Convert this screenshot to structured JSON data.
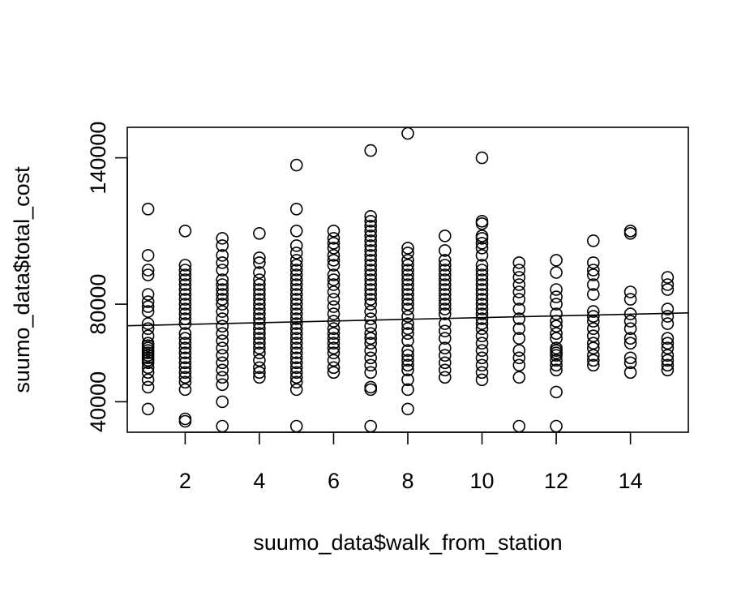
{
  "chart_data": {
    "type": "scatter",
    "title": "",
    "xlabel": "suumo_data$walk_from_station",
    "ylabel": "suumo_data$total_cost",
    "xlim": [
      0.44,
      15.56
    ],
    "ylim": [
      27500,
      152500
    ],
    "xticks": [
      2,
      4,
      6,
      8,
      10,
      12,
      14
    ],
    "yticks": [
      40000,
      80000,
      140000
    ],
    "grid": false,
    "legend": "none",
    "marker": "open-circle",
    "regression_line": {
      "intercept": 71000,
      "slope": 350
    },
    "points": [
      {
        "x": 1,
        "y": 37000
      },
      {
        "x": 1,
        "y": 46000
      },
      {
        "x": 1,
        "y": 49000
      },
      {
        "x": 1,
        "y": 52000
      },
      {
        "x": 1,
        "y": 54000
      },
      {
        "x": 1,
        "y": 56000
      },
      {
        "x": 1,
        "y": 57000
      },
      {
        "x": 1,
        "y": 58000
      },
      {
        "x": 1,
        "y": 59000
      },
      {
        "x": 1,
        "y": 60000
      },
      {
        "x": 1,
        "y": 61000
      },
      {
        "x": 1,
        "y": 62000
      },
      {
        "x": 1,
        "y": 63000
      },
      {
        "x": 1,
        "y": 64000
      },
      {
        "x": 1,
        "y": 67000
      },
      {
        "x": 1,
        "y": 70000
      },
      {
        "x": 1,
        "y": 72000
      },
      {
        "x": 1,
        "y": 77000
      },
      {
        "x": 1,
        "y": 79000
      },
      {
        "x": 1,
        "y": 81000
      },
      {
        "x": 1,
        "y": 84000
      },
      {
        "x": 1,
        "y": 92000
      },
      {
        "x": 1,
        "y": 94000
      },
      {
        "x": 1,
        "y": 100000
      },
      {
        "x": 1,
        "y": 119000
      },
      {
        "x": 2,
        "y": 32000
      },
      {
        "x": 2,
        "y": 33000
      },
      {
        "x": 2,
        "y": 45000
      },
      {
        "x": 2,
        "y": 48000
      },
      {
        "x": 2,
        "y": 50000
      },
      {
        "x": 2,
        "y": 52000
      },
      {
        "x": 2,
        "y": 54000
      },
      {
        "x": 2,
        "y": 56000
      },
      {
        "x": 2,
        "y": 58000
      },
      {
        "x": 2,
        "y": 60000
      },
      {
        "x": 2,
        "y": 62000
      },
      {
        "x": 2,
        "y": 64000
      },
      {
        "x": 2,
        "y": 66000
      },
      {
        "x": 2,
        "y": 68000
      },
      {
        "x": 2,
        "y": 72000
      },
      {
        "x": 2,
        "y": 74000
      },
      {
        "x": 2,
        "y": 76000
      },
      {
        "x": 2,
        "y": 78000
      },
      {
        "x": 2,
        "y": 80000
      },
      {
        "x": 2,
        "y": 82000
      },
      {
        "x": 2,
        "y": 84000
      },
      {
        "x": 2,
        "y": 86000
      },
      {
        "x": 2,
        "y": 88000
      },
      {
        "x": 2,
        "y": 90000
      },
      {
        "x": 2,
        "y": 92000
      },
      {
        "x": 2,
        "y": 94000
      },
      {
        "x": 2,
        "y": 96000
      },
      {
        "x": 2,
        "y": 110000
      },
      {
        "x": 3,
        "y": 30000
      },
      {
        "x": 3,
        "y": 40000
      },
      {
        "x": 3,
        "y": 47000
      },
      {
        "x": 3,
        "y": 50000
      },
      {
        "x": 3,
        "y": 53000
      },
      {
        "x": 3,
        "y": 56000
      },
      {
        "x": 3,
        "y": 59000
      },
      {
        "x": 3,
        "y": 62000
      },
      {
        "x": 3,
        "y": 65000
      },
      {
        "x": 3,
        "y": 68000
      },
      {
        "x": 3,
        "y": 71000
      },
      {
        "x": 3,
        "y": 74000
      },
      {
        "x": 3,
        "y": 77000
      },
      {
        "x": 3,
        "y": 80000
      },
      {
        "x": 3,
        "y": 82000
      },
      {
        "x": 3,
        "y": 84000
      },
      {
        "x": 3,
        "y": 86000
      },
      {
        "x": 3,
        "y": 88000
      },
      {
        "x": 3,
        "y": 90000
      },
      {
        "x": 3,
        "y": 94000
      },
      {
        "x": 3,
        "y": 97000
      },
      {
        "x": 3,
        "y": 100000
      },
      {
        "x": 3,
        "y": 104000
      },
      {
        "x": 3,
        "y": 107000
      },
      {
        "x": 4,
        "y": 50000
      },
      {
        "x": 4,
        "y": 52000
      },
      {
        "x": 4,
        "y": 54000
      },
      {
        "x": 4,
        "y": 57000
      },
      {
        "x": 4,
        "y": 60000
      },
      {
        "x": 4,
        "y": 62000
      },
      {
        "x": 4,
        "y": 64000
      },
      {
        "x": 4,
        "y": 66000
      },
      {
        "x": 4,
        "y": 68000
      },
      {
        "x": 4,
        "y": 70000
      },
      {
        "x": 4,
        "y": 72000
      },
      {
        "x": 4,
        "y": 74000
      },
      {
        "x": 4,
        "y": 76000
      },
      {
        "x": 4,
        "y": 78000
      },
      {
        "x": 4,
        "y": 80000
      },
      {
        "x": 4,
        "y": 82000
      },
      {
        "x": 4,
        "y": 84000
      },
      {
        "x": 4,
        "y": 86000
      },
      {
        "x": 4,
        "y": 88000
      },
      {
        "x": 4,
        "y": 90000
      },
      {
        "x": 4,
        "y": 93000
      },
      {
        "x": 4,
        "y": 97000
      },
      {
        "x": 4,
        "y": 99000
      },
      {
        "x": 4,
        "y": 109000
      },
      {
        "x": 5,
        "y": 30000
      },
      {
        "x": 5,
        "y": 45000
      },
      {
        "x": 5,
        "y": 48000
      },
      {
        "x": 5,
        "y": 50000
      },
      {
        "x": 5,
        "y": 52000
      },
      {
        "x": 5,
        "y": 54000
      },
      {
        "x": 5,
        "y": 56000
      },
      {
        "x": 5,
        "y": 58000
      },
      {
        "x": 5,
        "y": 60000
      },
      {
        "x": 5,
        "y": 62000
      },
      {
        "x": 5,
        "y": 64000
      },
      {
        "x": 5,
        "y": 66000
      },
      {
        "x": 5,
        "y": 68000
      },
      {
        "x": 5,
        "y": 70000
      },
      {
        "x": 5,
        "y": 72000
      },
      {
        "x": 5,
        "y": 74000
      },
      {
        "x": 5,
        "y": 76000
      },
      {
        "x": 5,
        "y": 78000
      },
      {
        "x": 5,
        "y": 80000
      },
      {
        "x": 5,
        "y": 82000
      },
      {
        "x": 5,
        "y": 84000
      },
      {
        "x": 5,
        "y": 86000
      },
      {
        "x": 5,
        "y": 88000
      },
      {
        "x": 5,
        "y": 90000
      },
      {
        "x": 5,
        "y": 92000
      },
      {
        "x": 5,
        "y": 94000
      },
      {
        "x": 5,
        "y": 96000
      },
      {
        "x": 5,
        "y": 98000
      },
      {
        "x": 5,
        "y": 101000
      },
      {
        "x": 5,
        "y": 104000
      },
      {
        "x": 5,
        "y": 110000
      },
      {
        "x": 5,
        "y": 119000
      },
      {
        "x": 5,
        "y": 137000
      },
      {
        "x": 6,
        "y": 52000
      },
      {
        "x": 6,
        "y": 54000
      },
      {
        "x": 6,
        "y": 57000
      },
      {
        "x": 6,
        "y": 60000
      },
      {
        "x": 6,
        "y": 62000
      },
      {
        "x": 6,
        "y": 64000
      },
      {
        "x": 6,
        "y": 66000
      },
      {
        "x": 6,
        "y": 68000
      },
      {
        "x": 6,
        "y": 70000
      },
      {
        "x": 6,
        "y": 73000
      },
      {
        "x": 6,
        "y": 76000
      },
      {
        "x": 6,
        "y": 79000
      },
      {
        "x": 6,
        "y": 82000
      },
      {
        "x": 6,
        "y": 85000
      },
      {
        "x": 6,
        "y": 88000
      },
      {
        "x": 6,
        "y": 90000
      },
      {
        "x": 6,
        "y": 92000
      },
      {
        "x": 6,
        "y": 96000
      },
      {
        "x": 6,
        "y": 98000
      },
      {
        "x": 6,
        "y": 100000
      },
      {
        "x": 6,
        "y": 103000
      },
      {
        "x": 6,
        "y": 105000
      },
      {
        "x": 6,
        "y": 107000
      },
      {
        "x": 6,
        "y": 110000
      },
      {
        "x": 7,
        "y": 30000
      },
      {
        "x": 7,
        "y": 45000
      },
      {
        "x": 7,
        "y": 46000
      },
      {
        "x": 7,
        "y": 52000
      },
      {
        "x": 7,
        "y": 55000
      },
      {
        "x": 7,
        "y": 58000
      },
      {
        "x": 7,
        "y": 61000
      },
      {
        "x": 7,
        "y": 64000
      },
      {
        "x": 7,
        "y": 66000
      },
      {
        "x": 7,
        "y": 68000
      },
      {
        "x": 7,
        "y": 71000
      },
      {
        "x": 7,
        "y": 74000
      },
      {
        "x": 7,
        "y": 77000
      },
      {
        "x": 7,
        "y": 80000
      },
      {
        "x": 7,
        "y": 82000
      },
      {
        "x": 7,
        "y": 84000
      },
      {
        "x": 7,
        "y": 86000
      },
      {
        "x": 7,
        "y": 88000
      },
      {
        "x": 7,
        "y": 90000
      },
      {
        "x": 7,
        "y": 92000
      },
      {
        "x": 7,
        "y": 94000
      },
      {
        "x": 7,
        "y": 96000
      },
      {
        "x": 7,
        "y": 98000
      },
      {
        "x": 7,
        "y": 100000
      },
      {
        "x": 7,
        "y": 102000
      },
      {
        "x": 7,
        "y": 104000
      },
      {
        "x": 7,
        "y": 106000
      },
      {
        "x": 7,
        "y": 108000
      },
      {
        "x": 7,
        "y": 110000
      },
      {
        "x": 7,
        "y": 112000
      },
      {
        "x": 7,
        "y": 114000
      },
      {
        "x": 7,
        "y": 116000
      },
      {
        "x": 7,
        "y": 143000
      },
      {
        "x": 8,
        "y": 37000
      },
      {
        "x": 8,
        "y": 45000
      },
      {
        "x": 8,
        "y": 49000
      },
      {
        "x": 8,
        "y": 53000
      },
      {
        "x": 8,
        "y": 55000
      },
      {
        "x": 8,
        "y": 57000
      },
      {
        "x": 8,
        "y": 59000
      },
      {
        "x": 8,
        "y": 61000
      },
      {
        "x": 8,
        "y": 65000
      },
      {
        "x": 8,
        "y": 68000
      },
      {
        "x": 8,
        "y": 70000
      },
      {
        "x": 8,
        "y": 72000
      },
      {
        "x": 8,
        "y": 75000
      },
      {
        "x": 8,
        "y": 78000
      },
      {
        "x": 8,
        "y": 80000
      },
      {
        "x": 8,
        "y": 82000
      },
      {
        "x": 8,
        "y": 84000
      },
      {
        "x": 8,
        "y": 86000
      },
      {
        "x": 8,
        "y": 88000
      },
      {
        "x": 8,
        "y": 90000
      },
      {
        "x": 8,
        "y": 92000
      },
      {
        "x": 8,
        "y": 94000
      },
      {
        "x": 8,
        "y": 96000
      },
      {
        "x": 8,
        "y": 98000
      },
      {
        "x": 8,
        "y": 101000
      },
      {
        "x": 8,
        "y": 103000
      },
      {
        "x": 8,
        "y": 150000
      },
      {
        "x": 9,
        "y": 50000
      },
      {
        "x": 9,
        "y": 53000
      },
      {
        "x": 9,
        "y": 56000
      },
      {
        "x": 9,
        "y": 59000
      },
      {
        "x": 9,
        "y": 62000
      },
      {
        "x": 9,
        "y": 66000
      },
      {
        "x": 9,
        "y": 69000
      },
      {
        "x": 9,
        "y": 72000
      },
      {
        "x": 9,
        "y": 76000
      },
      {
        "x": 9,
        "y": 78000
      },
      {
        "x": 9,
        "y": 80000
      },
      {
        "x": 9,
        "y": 82000
      },
      {
        "x": 9,
        "y": 84000
      },
      {
        "x": 9,
        "y": 86000
      },
      {
        "x": 9,
        "y": 88000
      },
      {
        "x": 9,
        "y": 90000
      },
      {
        "x": 9,
        "y": 92000
      },
      {
        "x": 9,
        "y": 94000
      },
      {
        "x": 9,
        "y": 96000
      },
      {
        "x": 9,
        "y": 98000
      },
      {
        "x": 9,
        "y": 102000
      },
      {
        "x": 9,
        "y": 108000
      },
      {
        "x": 10,
        "y": 49000
      },
      {
        "x": 10,
        "y": 52000
      },
      {
        "x": 10,
        "y": 55000
      },
      {
        "x": 10,
        "y": 58000
      },
      {
        "x": 10,
        "y": 61000
      },
      {
        "x": 10,
        "y": 64000
      },
      {
        "x": 10,
        "y": 67000
      },
      {
        "x": 10,
        "y": 70000
      },
      {
        "x": 10,
        "y": 72000
      },
      {
        "x": 10,
        "y": 74000
      },
      {
        "x": 10,
        "y": 76000
      },
      {
        "x": 10,
        "y": 78000
      },
      {
        "x": 10,
        "y": 80000
      },
      {
        "x": 10,
        "y": 82000
      },
      {
        "x": 10,
        "y": 84000
      },
      {
        "x": 10,
        "y": 86000
      },
      {
        "x": 10,
        "y": 88000
      },
      {
        "x": 10,
        "y": 90000
      },
      {
        "x": 10,
        "y": 92000
      },
      {
        "x": 10,
        "y": 94000
      },
      {
        "x": 10,
        "y": 96000
      },
      {
        "x": 10,
        "y": 100000
      },
      {
        "x": 10,
        "y": 103000
      },
      {
        "x": 10,
        "y": 105000
      },
      {
        "x": 10,
        "y": 107000
      },
      {
        "x": 10,
        "y": 108000
      },
      {
        "x": 10,
        "y": 113000
      },
      {
        "x": 10,
        "y": 114000
      },
      {
        "x": 10,
        "y": 140000
      },
      {
        "x": 11,
        "y": 30000
      },
      {
        "x": 11,
        "y": 50000
      },
      {
        "x": 11,
        "y": 55000
      },
      {
        "x": 11,
        "y": 58000
      },
      {
        "x": 11,
        "y": 61000
      },
      {
        "x": 11,
        "y": 66000
      },
      {
        "x": 11,
        "y": 70000
      },
      {
        "x": 11,
        "y": 74000
      },
      {
        "x": 11,
        "y": 78000
      },
      {
        "x": 11,
        "y": 82000
      },
      {
        "x": 11,
        "y": 85000
      },
      {
        "x": 11,
        "y": 88000
      },
      {
        "x": 11,
        "y": 91000
      },
      {
        "x": 11,
        "y": 94000
      },
      {
        "x": 11,
        "y": 97000
      },
      {
        "x": 12,
        "y": 30000
      },
      {
        "x": 12,
        "y": 44000
      },
      {
        "x": 12,
        "y": 53000
      },
      {
        "x": 12,
        "y": 55000
      },
      {
        "x": 12,
        "y": 57000
      },
      {
        "x": 12,
        "y": 59000
      },
      {
        "x": 12,
        "y": 60000
      },
      {
        "x": 12,
        "y": 61000
      },
      {
        "x": 12,
        "y": 62000
      },
      {
        "x": 12,
        "y": 66000
      },
      {
        "x": 12,
        "y": 68000
      },
      {
        "x": 12,
        "y": 71000
      },
      {
        "x": 12,
        "y": 73000
      },
      {
        "x": 12,
        "y": 76000
      },
      {
        "x": 12,
        "y": 80000
      },
      {
        "x": 12,
        "y": 83000
      },
      {
        "x": 12,
        "y": 86000
      },
      {
        "x": 12,
        "y": 93000
      },
      {
        "x": 12,
        "y": 98000
      },
      {
        "x": 13,
        "y": 55000
      },
      {
        "x": 13,
        "y": 57000
      },
      {
        "x": 13,
        "y": 59000
      },
      {
        "x": 13,
        "y": 62000
      },
      {
        "x": 13,
        "y": 64000
      },
      {
        "x": 13,
        "y": 67000
      },
      {
        "x": 13,
        "y": 70000
      },
      {
        "x": 13,
        "y": 73000
      },
      {
        "x": 13,
        "y": 75000
      },
      {
        "x": 13,
        "y": 77000
      },
      {
        "x": 13,
        "y": 84000
      },
      {
        "x": 13,
        "y": 88000
      },
      {
        "x": 13,
        "y": 92000
      },
      {
        "x": 13,
        "y": 94000
      },
      {
        "x": 13,
        "y": 97000
      },
      {
        "x": 13,
        "y": 106000
      },
      {
        "x": 14,
        "y": 52000
      },
      {
        "x": 14,
        "y": 56000
      },
      {
        "x": 14,
        "y": 58000
      },
      {
        "x": 14,
        "y": 64000
      },
      {
        "x": 14,
        "y": 66000
      },
      {
        "x": 14,
        "y": 70000
      },
      {
        "x": 14,
        "y": 73000
      },
      {
        "x": 14,
        "y": 76000
      },
      {
        "x": 14,
        "y": 82000
      },
      {
        "x": 14,
        "y": 85000
      },
      {
        "x": 14,
        "y": 109000
      },
      {
        "x": 14,
        "y": 110000
      },
      {
        "x": 15,
        "y": 53000
      },
      {
        "x": 15,
        "y": 55000
      },
      {
        "x": 15,
        "y": 57000
      },
      {
        "x": 15,
        "y": 59000
      },
      {
        "x": 15,
        "y": 62000
      },
      {
        "x": 15,
        "y": 64000
      },
      {
        "x": 15,
        "y": 66000
      },
      {
        "x": 15,
        "y": 72000
      },
      {
        "x": 15,
        "y": 75000
      },
      {
        "x": 15,
        "y": 78000
      },
      {
        "x": 15,
        "y": 86000
      },
      {
        "x": 15,
        "y": 88000
      },
      {
        "x": 15,
        "y": 91000
      }
    ]
  }
}
